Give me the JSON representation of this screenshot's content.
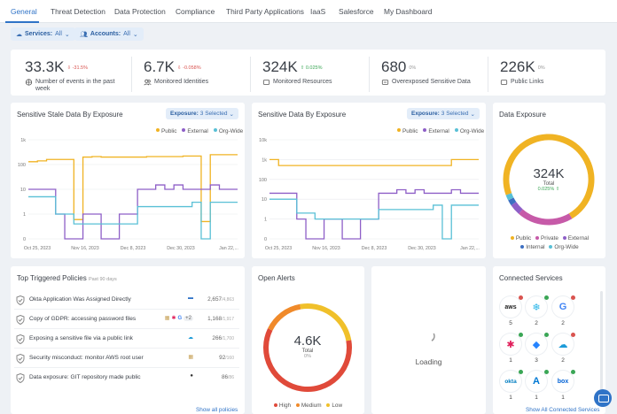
{
  "tabs": [
    "General",
    "Threat Detection",
    "Data Protection",
    "Compliance",
    "Third Party Applications",
    "IaaS",
    "Salesforce",
    "My Dashboard"
  ],
  "filters": {
    "services_label": "Services:",
    "services_value": "All",
    "accounts_label": "Accounts:",
    "accounts_value": "All"
  },
  "stats": [
    {
      "value": "33.3K",
      "change": "⇩ -31.5%",
      "label": "Number of events in the past week",
      "icon": "globe-icon"
    },
    {
      "value": "6.7K",
      "change": "⇩ -0.058%",
      "label": "Monitored Identities",
      "icon": "users-icon"
    },
    {
      "value": "324K",
      "change": "⇧ 0.025%",
      "label": "Monitored Resources",
      "icon": "resource-icon"
    },
    {
      "value": "680",
      "change": "0%",
      "label": "Overexposed Sensitive Data",
      "icon": "data-icon"
    },
    {
      "value": "226K",
      "change": "0%",
      "label": "Public Links",
      "icon": "link-icon"
    }
  ],
  "colors": {
    "public": "#f0b323",
    "external": "#8e5fc7",
    "orgwide": "#59c0d6",
    "private": "#c65aa8",
    "internal": "#3d6fc2"
  },
  "chart_stale": {
    "title": "Sensitive Stale Data By Exposure",
    "selector_label": "Exposure:",
    "selector_value": "3 Selected",
    "legend": [
      "Public",
      "External",
      "Org-Wide"
    ]
  },
  "chart_sensitive": {
    "title": "Sensitive Data By Exposure",
    "selector_label": "Exposure:",
    "selector_value": "3 Selected",
    "legend": [
      "Public",
      "External",
      "Org-Wide"
    ]
  },
  "chart_data": [
    {
      "type": "line",
      "title": "Sensitive Stale Data By Exposure",
      "yscale": "log",
      "yticks": [
        "1k",
        "100",
        "10",
        "1",
        "0"
      ],
      "xticks": [
        "Oct 25, 2023",
        "Nov 16, 2023",
        "Dec 8, 2023",
        "Dec 30, 2023",
        "Jan 22,..."
      ],
      "series": [
        {
          "name": "Public",
          "values": [
            130,
            140,
            160,
            160,
            160,
            0.6,
            200,
            210,
            200,
            200,
            200,
            200,
            200,
            210,
            210,
            210,
            210,
            220,
            220,
            0.5,
            250,
            250,
            250,
            250
          ]
        },
        {
          "name": "External",
          "values": [
            10,
            10,
            10,
            1,
            0,
            0,
            1,
            1,
            0,
            0,
            1,
            1,
            10,
            10,
            15,
            10,
            15,
            10,
            10,
            10,
            15,
            10,
            10,
            10
          ]
        },
        {
          "name": "Org-Wide",
          "values": [
            5,
            5,
            5,
            1,
            1,
            0.4,
            0.4,
            0.4,
            0.4,
            0.4,
            0.4,
            0.4,
            2,
            2,
            2,
            2,
            2,
            2,
            3,
            0,
            3,
            3,
            3,
            3
          ]
        }
      ]
    },
    {
      "type": "line",
      "title": "Sensitive Data By Exposure",
      "yscale": "log",
      "yticks": [
        "10k",
        "1k",
        "100",
        "10",
        "1",
        "0"
      ],
      "xticks": [
        "Oct 25, 2023",
        "Nov 16, 2023",
        "Dec 8, 2023",
        "Dec 30, 2023",
        "Jan 22,..."
      ],
      "series": [
        {
          "name": "Public",
          "values": [
            1000,
            500,
            500,
            500,
            500,
            500,
            500,
            500,
            500,
            500,
            500,
            500,
            500,
            500,
            500,
            500,
            500,
            500,
            500,
            500,
            1000,
            1000,
            1000,
            1000
          ]
        },
        {
          "name": "External",
          "values": [
            20,
            20,
            20,
            1,
            0,
            0,
            1,
            1,
            0,
            0,
            1,
            1,
            20,
            20,
            30,
            20,
            30,
            20,
            20,
            20,
            30,
            20,
            20,
            20
          ]
        },
        {
          "name": "Org-Wide",
          "values": [
            10,
            10,
            10,
            2,
            2,
            1,
            1,
            1,
            1,
            1,
            1,
            1,
            3,
            3,
            3,
            3,
            3,
            3,
            5,
            0,
            5,
            5,
            5,
            5
          ]
        }
      ]
    },
    {
      "type": "pie",
      "title": "Data Exposure",
      "categories": [
        "Public",
        "Private",
        "External",
        "Internal",
        "Org-Wide"
      ],
      "values": [
        72,
        20,
        4,
        2,
        2
      ]
    },
    {
      "type": "pie",
      "title": "Open Alerts",
      "categories": [
        "High",
        "Medium",
        "Low"
      ],
      "values": [
        60,
        15,
        25
      ]
    }
  ],
  "data_exposure": {
    "title": "Data Exposure",
    "total": "324K",
    "total_label": "Total",
    "change": "0.025% ⇧",
    "legend": [
      "Public",
      "Private",
      "External",
      "Internal",
      "Org-Wide"
    ]
  },
  "policies": {
    "title": "Top Triggered Policies",
    "subtitle": "Past 90 days",
    "items": [
      {
        "name": "Okta Application Was Assigned Directly",
        "count": "2,657",
        "total": "/4,863"
      },
      {
        "name": "Copy of GDPR: accessing password files",
        "count": "1,168",
        "total": "/1,917",
        "extra": "+2"
      },
      {
        "name": "Exposing a sensitive file via a public link",
        "count": "266",
        "total": "/1,700"
      },
      {
        "name": "Security misconduct: monitor AWS root user",
        "count": "92",
        "total": "/160"
      },
      {
        "name": "Data exposure: GIT repository made public",
        "count": "86",
        "total": "/86"
      }
    ],
    "show_all": "Show all policies"
  },
  "alerts": {
    "title": "Open Alerts",
    "total": "4.6K",
    "total_label": "Total",
    "change": "0%",
    "legend": [
      "High",
      "Medium",
      "Low"
    ]
  },
  "loading": {
    "text": "Loading"
  },
  "services": {
    "title": "Connected Services",
    "items": [
      {
        "name": "aws",
        "count": "5"
      },
      {
        "name": "snowflake",
        "count": "2"
      },
      {
        "name": "google",
        "count": "2"
      },
      {
        "name": "slack",
        "count": "1"
      },
      {
        "name": "jira",
        "count": "3"
      },
      {
        "name": "salesforce",
        "count": "2"
      },
      {
        "name": "okta",
        "count": "1"
      },
      {
        "name": "azure",
        "count": "1"
      },
      {
        "name": "box",
        "count": "1"
      }
    ],
    "show_all": "Show All Connected Services"
  }
}
